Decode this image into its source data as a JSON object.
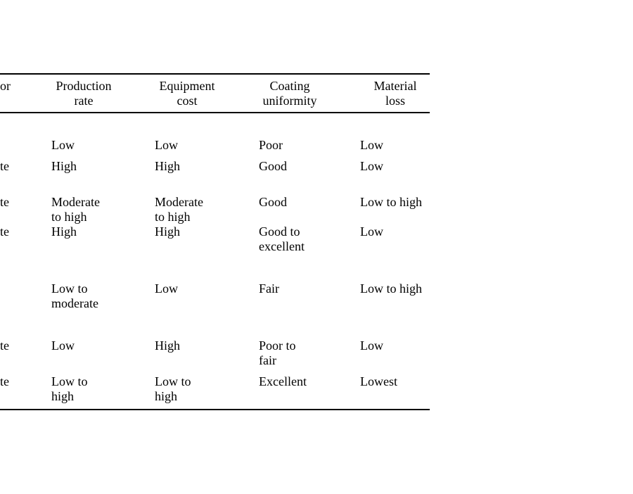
{
  "table": {
    "header": {
      "labor_fragment": "or",
      "columns": [
        "Production\nrate",
        "Equipment\ncost",
        "Coating\nuniformity",
        "Material\nloss"
      ]
    },
    "rows": [
      {
        "labor": "",
        "production": "Low",
        "equipment": "Low",
        "coating": "Poor",
        "material": "Low"
      },
      {
        "labor": "te",
        "production": "High",
        "equipment": "High",
        "coating": "Good",
        "material": "Low"
      },
      {
        "labor": "te",
        "production": "Moderate\nto high",
        "equipment": "Moderate\nto high",
        "coating": "Good",
        "material": "Low to high"
      },
      {
        "labor": "te",
        "production": "High",
        "equipment": "High",
        "coating": "Good to\nexcellent",
        "material": "Low"
      },
      {
        "labor": "",
        "production": "Low to\nmoderate",
        "equipment": "Low",
        "coating": "Fair",
        "material": "Low to high"
      },
      {
        "labor": "te",
        "production": "Low",
        "equipment": "High",
        "coating": "Poor to\nfair",
        "material": "Low"
      },
      {
        "labor": "te",
        "production": "Low to\nhigh",
        "equipment": "Low to\nhigh",
        "coating": "Excellent",
        "material": "Lowest"
      }
    ]
  }
}
